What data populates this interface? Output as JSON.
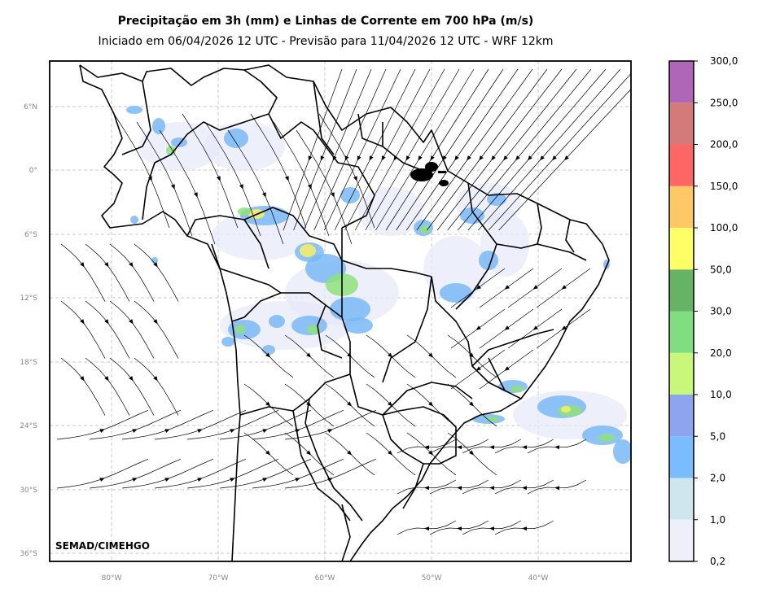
{
  "header": {
    "title": "Precipitação em 3h (mm) e Linhas de Corrente em 700 hPa (m/s)",
    "subtitle": "Iniciado em 06/04/2026 12 UTC - Previsão para 11/04/2026 12 UTC - WRF 12km"
  },
  "map": {
    "credit": "SEMAD/CIMEHGO",
    "lat_labels": [
      "6°N",
      "0°",
      "6°S",
      "12°S",
      "18°S",
      "24°S",
      "30°S",
      "36°S"
    ],
    "lon_labels": [
      "80°W",
      "70°W",
      "60°W",
      "50°W",
      "40°W"
    ]
  },
  "colorbar": {
    "levels": [
      "0,2",
      "1,0",
      "2,0",
      "5,0",
      "10,0",
      "20,0",
      "30,0",
      "50,0",
      "100,0",
      "150,0",
      "200,0",
      "250,0",
      "300,0"
    ],
    "colors": [
      "#efeffa",
      "#cfe6ef",
      "#79bcff",
      "#8fa4ee",
      "#c8f77a",
      "#80de80",
      "#66b366",
      "#fefe66",
      "#fec866",
      "#fe6666",
      "#d47a7a",
      "#b066b6"
    ]
  },
  "rain_colors": {
    "light": "#e6e8f8",
    "blue": "#79b8f5",
    "green": "#8fe07a",
    "yellow": "#f8f060"
  }
}
